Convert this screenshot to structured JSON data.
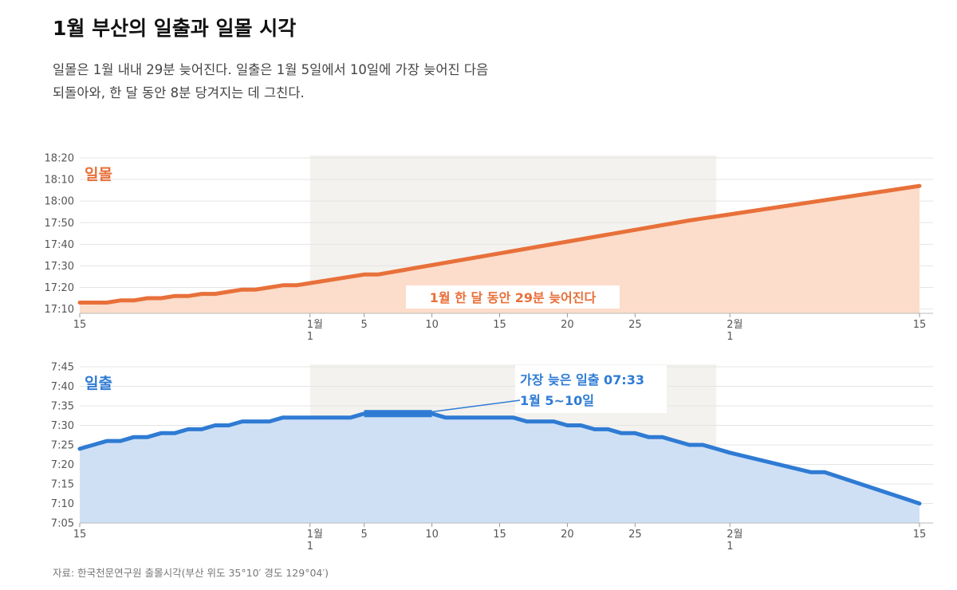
{
  "title": "1월 부산의 일출과 일몰 시각",
  "subtitle_lines": [
    "일몰은 1월 내내 29분 늦어진다. 일출은 1월 5일에서 10일에 가장 늦어진 다음",
    "되돌아와, 한 달 동안 8분 당겨지는 데 그친다."
  ],
  "source": "자료: 한국천문연구원 출몰시각(부산 위도 35°10′ 경도 129°04′)",
  "colors": {
    "sunset_line": "#e8703a",
    "sunset_fill": "#fcdcca",
    "sunrise_line": "#2f7bd4",
    "sunrise_fill": "#cfe0f5",
    "january_band": "#f3f2ee",
    "grid": "#e4e4e4"
  },
  "chart_data": [
    {
      "type": "area",
      "series": [
        {
          "name": "일몰",
          "x": [
            "12-15",
            "12-16",
            "12-17",
            "12-18",
            "12-19",
            "12-20",
            "12-21",
            "12-22",
            "12-23",
            "12-24",
            "12-25",
            "12-26",
            "12-27",
            "12-28",
            "12-29",
            "12-30",
            "12-31",
            "01-01",
            "01-05",
            "01-06",
            "01-29",
            "02-15"
          ],
          "values": [
            "17:13",
            "17:13",
            "17:13",
            "17:14",
            "17:14",
            "17:15",
            "17:15",
            "17:16",
            "17:16",
            "17:17",
            "17:17",
            "17:18",
            "17:19",
            "17:19",
            "17:20",
            "17:21",
            "17:21",
            "17:22",
            "17:26",
            "17:26",
            "17:51",
            "18:07"
          ]
        }
      ],
      "yticks": [
        "17:10",
        "17:20",
        "17:30",
        "17:40",
        "17:50",
        "18:00",
        "18:10",
        "18:20"
      ],
      "ylim": [
        "17:08",
        "18:20"
      ],
      "xlim": [
        "12-15",
        "02-16"
      ],
      "highlight_range": [
        "01-01",
        "01-31"
      ],
      "xticks": [
        {
          "x": "12-15",
          "label": "15"
        },
        {
          "x": "01-01",
          "label": "1월",
          "label2": "1"
        },
        {
          "x": "01-05",
          "label": "5"
        },
        {
          "x": "01-10",
          "label": "10"
        },
        {
          "x": "01-15",
          "label": "15"
        },
        {
          "x": "01-20",
          "label": "20"
        },
        {
          "x": "01-25",
          "label": "25"
        },
        {
          "x": "02-01",
          "label": "2월",
          "label2": "1"
        },
        {
          "x": "02-15",
          "label": "15"
        }
      ],
      "annotation": "1월 한 달 동안 29분 늦어진다"
    },
    {
      "type": "area",
      "series": [
        {
          "name": "일출",
          "x": [
            "12-15",
            "12-16",
            "12-17",
            "12-18",
            "12-19",
            "12-20",
            "12-21",
            "12-22",
            "12-23",
            "12-24",
            "12-25",
            "12-26",
            "12-27",
            "12-28",
            "12-29",
            "12-30",
            "12-31",
            "01-01",
            "01-02",
            "01-03",
            "01-04",
            "01-05",
            "01-10",
            "01-11",
            "01-16",
            "01-17",
            "01-18",
            "01-19",
            "01-20",
            "01-21",
            "01-22",
            "01-23",
            "01-24",
            "01-25",
            "01-26",
            "01-27",
            "01-28",
            "01-29",
            "01-30",
            "01-31",
            "02-01",
            "02-07",
            "02-08",
            "02-15"
          ],
          "values": [
            "07:24",
            "07:25",
            "07:26",
            "07:26",
            "07:27",
            "07:27",
            "07:28",
            "07:28",
            "07:29",
            "07:29",
            "07:30",
            "07:30",
            "07:31",
            "07:31",
            "07:31",
            "07:32",
            "07:32",
            "07:32",
            "07:32",
            "07:32",
            "07:32",
            "07:33",
            "07:33",
            "07:32",
            "07:32",
            "07:31",
            "07:31",
            "07:31",
            "07:30",
            "07:30",
            "07:29",
            "07:29",
            "07:28",
            "07:28",
            "07:27",
            "07:27",
            "07:26",
            "07:25",
            "07:25",
            "07:24",
            "07:23",
            "07:18",
            "07:18",
            "07:10"
          ]
        }
      ],
      "yticks": [
        "07:05",
        "07:10",
        "07:15",
        "07:20",
        "07:25",
        "07:30",
        "07:35",
        "07:40",
        "07:45"
      ],
      "ylim": [
        "07:05",
        "07:45"
      ],
      "xlim": [
        "12-15",
        "02-16"
      ],
      "highlight_range": [
        "01-01",
        "01-31"
      ],
      "xticks": [
        {
          "x": "12-15",
          "label": "15"
        },
        {
          "x": "01-01",
          "label": "1월",
          "label2": "1"
        },
        {
          "x": "01-05",
          "label": "5"
        },
        {
          "x": "01-10",
          "label": "10"
        },
        {
          "x": "01-15",
          "label": "15"
        },
        {
          "x": "01-20",
          "label": "20"
        },
        {
          "x": "01-25",
          "label": "25"
        },
        {
          "x": "02-01",
          "label": "2월",
          "label2": "1"
        },
        {
          "x": "02-15",
          "label": "15"
        }
      ],
      "annotation_lines": [
        "가장 늦은 일출 07:33",
        "1월 5~10일"
      ],
      "highlight_segment": [
        "01-05",
        "01-10"
      ]
    }
  ]
}
